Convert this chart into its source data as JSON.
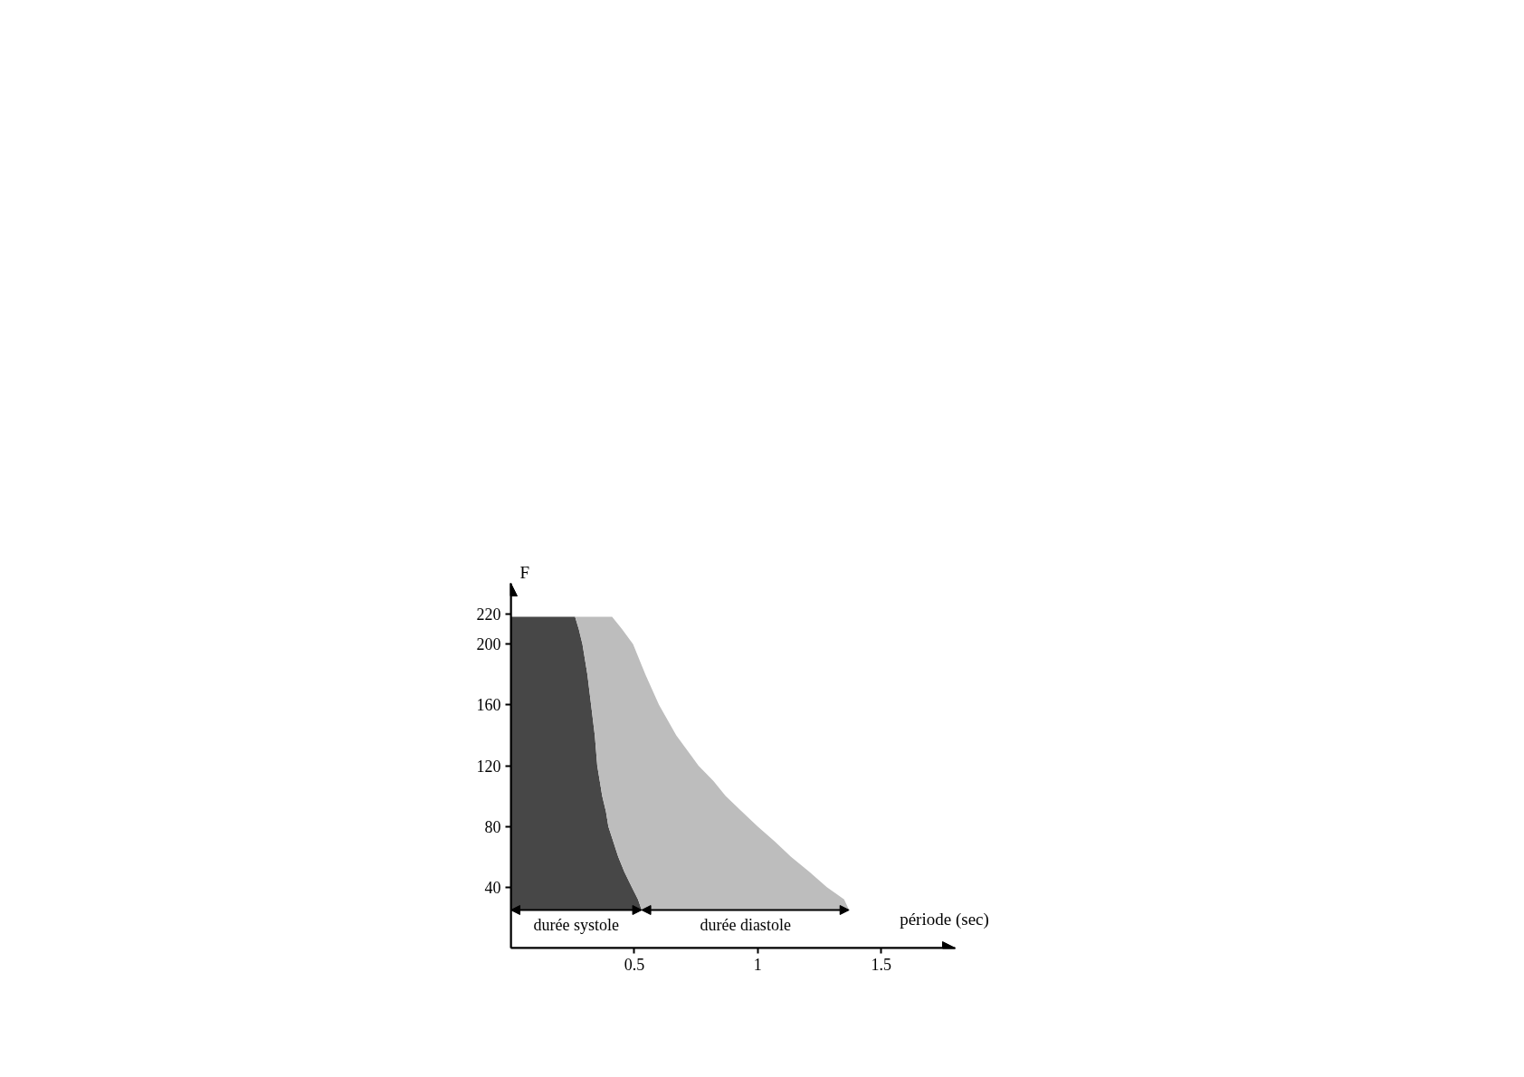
{
  "chart_data": {
    "type": "area",
    "orientation": "horizontal",
    "stacked": true,
    "xlabel": "période (sec)",
    "ylabel": "F",
    "x": [
      25,
      32,
      40,
      50,
      60,
      70,
      80,
      90,
      100,
      110,
      120,
      140,
      160,
      180,
      200,
      210,
      218
    ],
    "series": [
      {
        "name": "durée systole",
        "color": "#474747",
        "values": [
          0.53,
          0.515,
          0.49,
          0.46,
          0.435,
          0.415,
          0.395,
          0.385,
          0.37,
          0.36,
          0.35,
          0.34,
          0.325,
          0.31,
          0.29,
          0.275,
          0.26
        ]
      },
      {
        "name": "durée diastole",
        "color": "#bdbdbd",
        "values": [
          0.84,
          0.835,
          0.79,
          0.75,
          0.7,
          0.655,
          0.605,
          0.55,
          0.5,
          0.46,
          0.41,
          0.33,
          0.275,
          0.235,
          0.205,
          0.175,
          0.15
        ]
      }
    ],
    "xlim": [
      0,
      1.8
    ],
    "xticks": [
      0.5,
      1,
      1.5
    ],
    "ylim": [
      0,
      240
    ],
    "yticks": [
      40,
      80,
      120,
      160,
      200,
      220
    ]
  }
}
